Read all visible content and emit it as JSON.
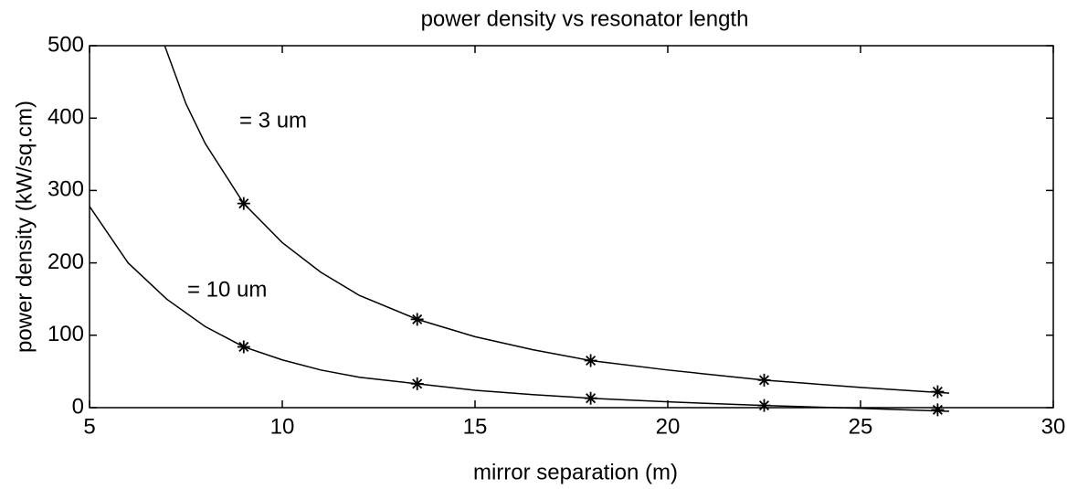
{
  "chart_data": {
    "type": "line",
    "title": "power density vs resonator length",
    "xlabel": "mirror separation   (m)",
    "ylabel": "power density   (kW/sq.cm)",
    "xlim": [
      5,
      30
    ],
    "xticks": [
      5,
      10,
      15,
      20,
      25,
      30
    ],
    "ylim": [
      0,
      500
    ],
    "yticks": [
      0,
      100,
      200,
      300,
      400,
      500
    ],
    "series": [
      {
        "name": "= 3 um",
        "color": "#000000",
        "x": [
          6.95,
          7.5,
          8,
          9,
          10,
          11,
          12,
          13.5,
          15,
          16.5,
          18,
          20,
          22.5,
          25,
          27.3
        ],
        "values": [
          500,
          420,
          365,
          282,
          228,
          187,
          155,
          122,
          98,
          80,
          65,
          52,
          38,
          28,
          20
        ],
        "marker_x": [
          9,
          13.5,
          18,
          22.5,
          27
        ],
        "marker_values": [
          282,
          122,
          65,
          38,
          22
        ]
      },
      {
        "name": "= 10 um",
        "color": "#000000",
        "x": [
          5,
          6,
          7,
          8,
          9,
          10,
          11,
          12,
          13.5,
          15,
          16.5,
          18,
          20,
          22.5,
          25,
          27.3
        ],
        "values": [
          278,
          200,
          150,
          112,
          84,
          66,
          52,
          42,
          33,
          24,
          18,
          13,
          8,
          3,
          -1,
          -5
        ],
        "marker_x": [
          9,
          13.5,
          18,
          22.5,
          27
        ],
        "marker_values": [
          84,
          33,
          13,
          3,
          -3
        ]
      }
    ]
  }
}
